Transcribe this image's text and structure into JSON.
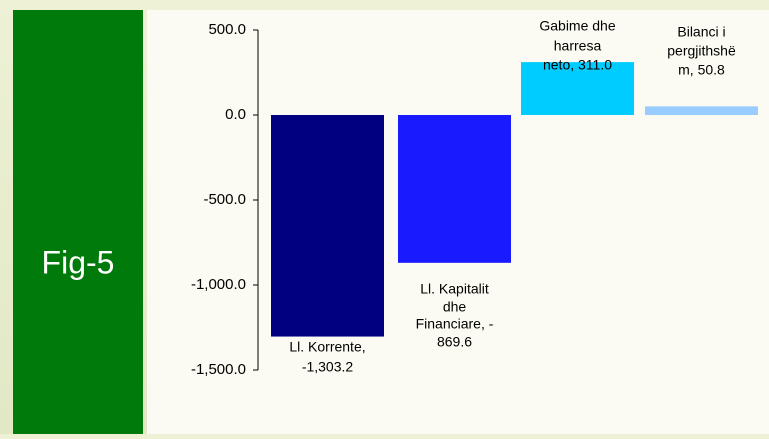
{
  "chart_data": {
    "type": "bar",
    "figure_label": "Fig-5",
    "categories": [
      "Ll. Korrente",
      "Ll. Kapitalit dhe Financiare",
      "Gabime dhe harresa neto",
      "Bilanci i pergjithshëm"
    ],
    "values": [
      -1303.2,
      -869.6,
      311.0,
      50.8
    ],
    "data_labels": [
      [
        "Ll. Korrente,",
        "-1,303.2"
      ],
      [
        "Ll. Kapitalit",
        "dhe",
        "Financiare, -",
        "869.6"
      ],
      [
        "Gabime dhe",
        "harresa",
        "neto, 311.0"
      ],
      [
        "Bilanci i",
        "pergjithshë",
        "m, 50.8"
      ]
    ],
    "colors": [
      "#000080",
      "#1a1aff",
      "#00ccff",
      "#99ccff"
    ],
    "ylim": [
      -1500,
      500
    ],
    "yticks": [
      {
        "value": 500,
        "label": "500.0"
      },
      {
        "value": 0,
        "label": "0.0"
      },
      {
        "value": -500,
        "label": "-500.0"
      },
      {
        "value": -1000,
        "label": "-1,000.0"
      },
      {
        "value": -1500,
        "label": "-1,500.0"
      }
    ]
  }
}
